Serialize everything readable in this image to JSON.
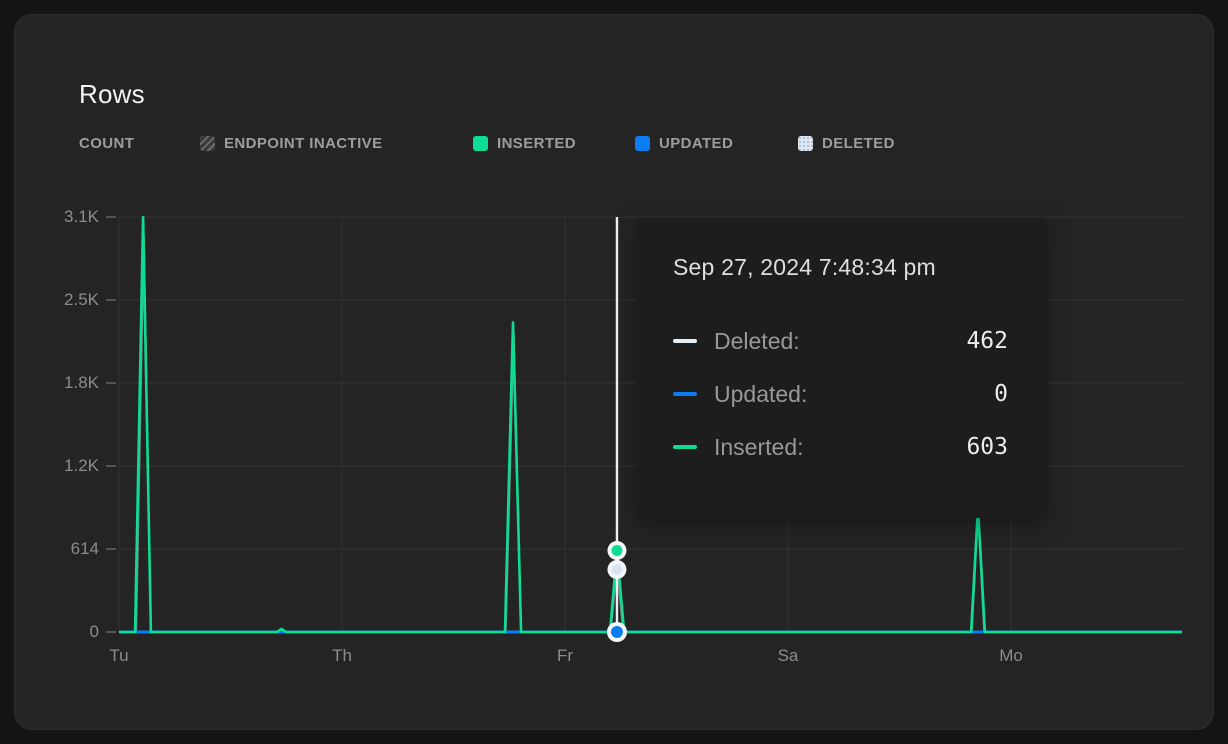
{
  "card": {
    "title": "Rows"
  },
  "legend": {
    "count_label": "COUNT",
    "items": [
      {
        "label": "ENDPOINT INACTIVE",
        "swatch": "hatched"
      },
      {
        "label": "INSERTED",
        "color": "#0edc92"
      },
      {
        "label": "UPDATED",
        "color": "#0c7cf2"
      },
      {
        "label": "DELETED",
        "color": "#dce7f2"
      }
    ]
  },
  "tooltip": {
    "title": "Sep 27, 2024 7:48:34 pm",
    "rows": [
      {
        "label": "Deleted:",
        "value": "462",
        "color": "#e7eff7"
      },
      {
        "label": "Updated:",
        "value": "0",
        "color": "#0c7cf2"
      },
      {
        "label": "Inserted:",
        "value": "603",
        "color": "#0edc92"
      }
    ]
  },
  "chart_data": {
    "type": "line",
    "title": "Rows",
    "metric": "COUNT",
    "x_tick_labels": [
      "Tu",
      "Th",
      "Fr",
      "Sa",
      "Mo"
    ],
    "x_range_days": [
      0,
      4.767
    ],
    "ylim": [
      0,
      3070
    ],
    "y_ticks": [
      {
        "v": 0,
        "label": "0"
      },
      {
        "v": 614,
        "label": "614"
      },
      {
        "v": 1228,
        "label": "1.2K"
      },
      {
        "v": 1842,
        "label": "1.8K"
      },
      {
        "v": 2456,
        "label": "2.5K"
      },
      {
        "v": 3070,
        "label": "3.1K"
      }
    ],
    "grid": true,
    "legend_position": "top",
    "series": [
      {
        "name": "Deleted",
        "color": "#cfdeeb",
        "points": [
          [
            0,
            0
          ],
          [
            0.078,
            0
          ],
          [
            0.112,
            2930
          ],
          [
            0.143,
            0
          ],
          [
            1.735,
            0
          ],
          [
            1.771,
            2210
          ],
          [
            1.803,
            0
          ],
          [
            2.206,
            0
          ],
          [
            2.233,
            462
          ],
          [
            2.26,
            0
          ],
          [
            3.825,
            0
          ],
          [
            3.852,
            860
          ],
          [
            3.879,
            0
          ],
          [
            4.767,
            0
          ]
        ]
      },
      {
        "name": "Updated",
        "color": "#0c7cf2",
        "points": [
          [
            0,
            0
          ],
          [
            4.767,
            0
          ]
        ]
      },
      {
        "name": "Inserted",
        "color": "#0edc92",
        "points": [
          [
            0,
            0
          ],
          [
            0.072,
            0
          ],
          [
            0.108,
            3070
          ],
          [
            0.143,
            0
          ],
          [
            0.708,
            0
          ],
          [
            0.729,
            22
          ],
          [
            0.749,
            0
          ],
          [
            1.731,
            0
          ],
          [
            1.767,
            2290
          ],
          [
            1.803,
            0
          ],
          [
            2.202,
            0
          ],
          [
            2.233,
            603
          ],
          [
            2.265,
            0
          ],
          [
            3.821,
            0
          ],
          [
            3.852,
            920
          ],
          [
            3.883,
            0
          ],
          [
            4.767,
            0
          ]
        ]
      }
    ],
    "hover": {
      "x_day": 2.233,
      "timestamp": "Sep 27, 2024 7:48:34 pm",
      "deleted": 462,
      "updated": 0,
      "inserted": 603
    }
  }
}
